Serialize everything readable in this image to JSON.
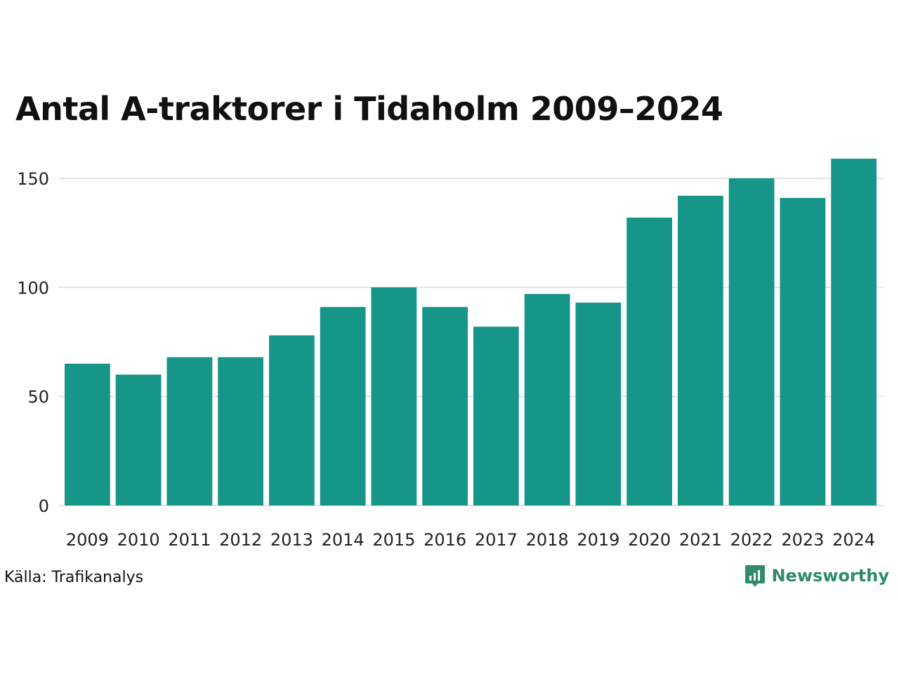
{
  "title": "Antal A-traktorer i Tidaholm 2009–2024",
  "source": "Källa: Trafikanalys",
  "brand": {
    "name": "Newsworthy",
    "color": "#2f8a6e",
    "icon": "newsworthy-logo-icon"
  },
  "colors": {
    "bar": "#159688",
    "grid": "#e3e3e3"
  },
  "chart_data": {
    "type": "bar",
    "title": "Antal A-traktorer i Tidaholm 2009–2024",
    "xlabel": "",
    "ylabel": "",
    "categories": [
      "2009",
      "2010",
      "2011",
      "2012",
      "2013",
      "2014",
      "2015",
      "2016",
      "2017",
      "2018",
      "2019",
      "2020",
      "2021",
      "2022",
      "2023",
      "2024"
    ],
    "values": [
      65,
      60,
      68,
      68,
      78,
      91,
      100,
      91,
      82,
      97,
      93,
      132,
      142,
      150,
      141,
      159
    ],
    "ylim": [
      0,
      159
    ],
    "yticks": [
      0,
      50,
      100,
      150
    ],
    "grid": true,
    "legend": "none"
  }
}
